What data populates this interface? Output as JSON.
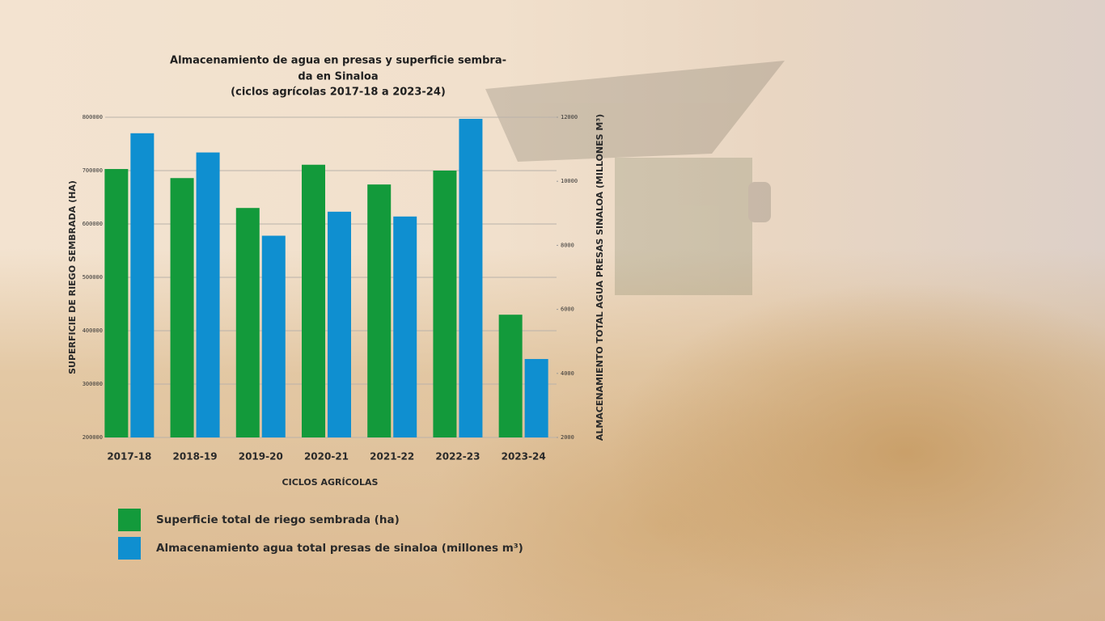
{
  "chart_data": {
    "type": "bar",
    "title": [
      "Almacenamiento de agua en presas y superficie sembra-",
      "da en Sinaloa",
      "(ciclos agrícolas 2017-18 a 2023-24)"
    ],
    "x_label": "CICLOS AGRÍCOLAS",
    "y_label": "SUPERFICIE DE RIEGO SEMBRADA (HA)",
    "y2_label": "ALMACENAMIENTO TOTAL AGUA PRESAS SINALOA (MILLONES M³)",
    "categories": [
      "2017-18",
      "2018-19",
      "2019-20",
      "2020-21",
      "2021-22",
      "2022-23",
      "2023-24"
    ],
    "series": [
      {
        "name": "Superficie total de riego sembrada (ha)",
        "color": "#139a3b",
        "values": [
          703000,
          686000,
          630000,
          711000,
          674000,
          700000,
          430000
        ]
      },
      {
        "name": "Almacenamiento agua total presas de sinaloa (millones m³)",
        "color": "#0f8fd0",
        "axis": "y2",
        "values": [
          11500,
          10900,
          8300,
          9050,
          8900,
          11950,
          4450
        ]
      }
    ],
    "ylim": [
      200000,
      800000
    ],
    "yticks": [
      200000,
      300000,
      400000,
      500000,
      600000,
      700000,
      800000
    ],
    "y2lim": [
      2000,
      12000
    ],
    "y2ticks": [
      2000,
      4000,
      6000,
      8000,
      10000,
      12000
    ],
    "grid": true
  }
}
